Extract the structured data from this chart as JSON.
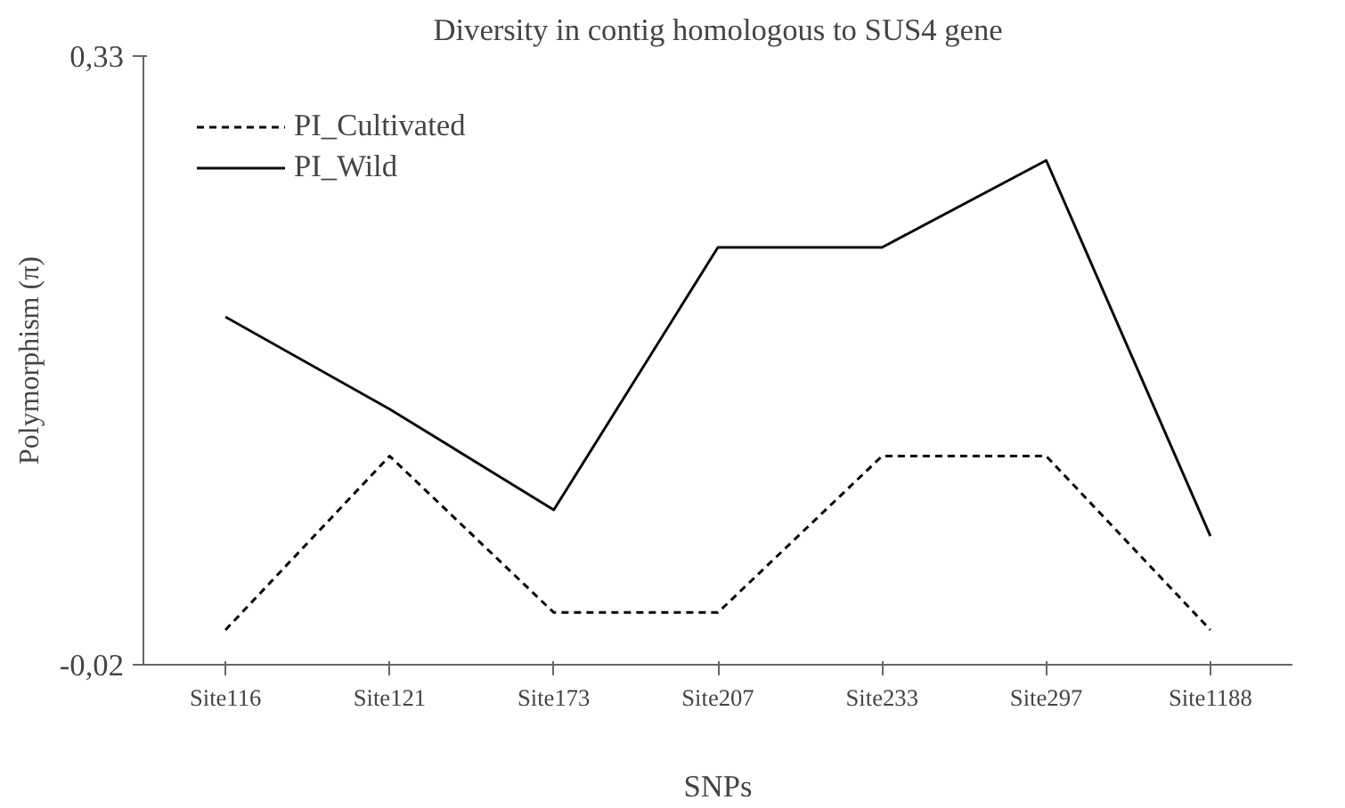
{
  "chart_data": {
    "type": "line",
    "title": "Diversity in contig homologous to SUS4 gene",
    "xlabel": "SNPs",
    "ylabel": "Polymorphism (π)",
    "categories": [
      "Site116",
      "Site121",
      "Site173",
      "Site207",
      "Site233",
      "Site297",
      "Site1188"
    ],
    "series": [
      {
        "name": "PI_Cultivated",
        "color": "#000000",
        "line_style": "dashed",
        "values": [
          0.0,
          0.1,
          0.01,
          0.01,
          0.1,
          0.1,
          0.0
        ]
      },
      {
        "name": "PI_Wild",
        "color": "#0a0a0a",
        "line_style": "solid",
        "values": [
          0.18,
          0.127,
          0.069,
          0.22,
          0.22,
          0.27,
          0.054
        ]
      }
    ],
    "ylim": [
      -0.02,
      0.33
    ],
    "yticks": [
      {
        "value": 0.33,
        "label": "0,33"
      },
      {
        "value": -0.02,
        "label": "-0,02"
      }
    ],
    "grid": false,
    "legend": "top left",
    "marker": "none"
  }
}
